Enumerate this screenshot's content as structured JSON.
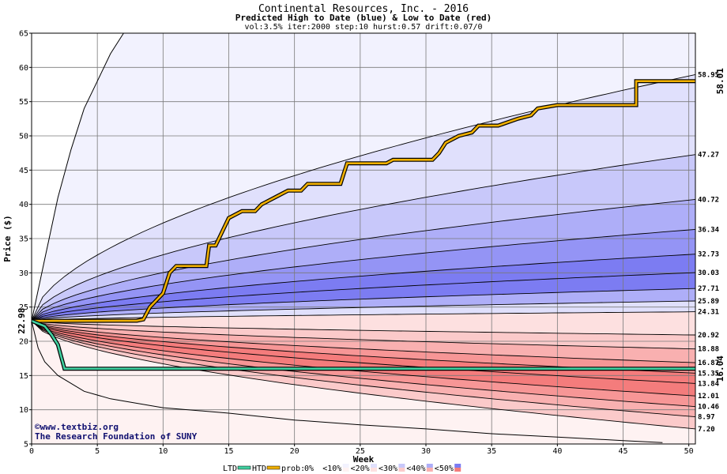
{
  "header": {
    "title": "Continental Resources, Inc. - 2016",
    "subtitle": "Predicted High to Date (blue) &  Low to Date (red)",
    "params": "vol:3.5% iter:2000 step:10 hurst:0.57 drift:0.07/0"
  },
  "watermark": {
    "line1": "©www.textbiz.org",
    "line2": "The Research Foundation of SUNY"
  },
  "legend": {
    "ltd": "LTD",
    "htd": "HTD",
    "prob": "prob:",
    "items": [
      "0%",
      "<10%",
      "<20%",
      "<30%",
      "<40%",
      "<50%"
    ]
  },
  "colors": {
    "htd_line": "#f0b000",
    "ltd_line": "#40d0a0",
    "htd_end_label": "#b08000",
    "ltd_end_label": "#008060",
    "blue_bands": [
      "#f2f2fe",
      "#e0e0fc",
      "#c8c8fa",
      "#aeaef8",
      "#9494f5",
      "#7c7cf2"
    ],
    "red_bands": [
      "#fef2f2",
      "#fde0e0",
      "#fbcaca",
      "#f9b0b0",
      "#f79696",
      "#f47c7c"
    ]
  },
  "chart_data": {
    "type": "line",
    "title": "Continental Resources, Inc. - 2016",
    "xlabel": "Week",
    "ylabel": "Price ($)",
    "xlim": [
      0,
      50.5
    ],
    "ylim": [
      5,
      65
    ],
    "x_ticks": [
      0,
      5,
      10,
      15,
      20,
      25,
      30,
      35,
      40,
      45,
      50
    ],
    "y_ticks": [
      5,
      10,
      15,
      20,
      25,
      30,
      35,
      40,
      45,
      50,
      55,
      60,
      65
    ],
    "grid": true,
    "start_price": 22.98,
    "start_label": "22.98",
    "high_percentile_end_values": [
      58.95,
      47.27,
      40.72,
      36.34,
      32.73,
      30.03,
      27.71,
      25.89,
      24.31
    ],
    "high_percentile_end_labels": [
      "58.95",
      "47.27",
      "40.72",
      "36.34",
      "32.73",
      "30.03",
      "27.71",
      "25.89",
      "24.31"
    ],
    "low_percentile_end_values": [
      20.92,
      18.88,
      16.87,
      15.35,
      13.84,
      12.01,
      10.46,
      8.97,
      7.2
    ],
    "low_percentile_end_labels": [
      "20.92",
      "18.88",
      "16.87",
      "15.35",
      "13.84",
      "12.01",
      "10.46",
      "8.97",
      "7.20"
    ],
    "outer_high_curve": [
      [
        0,
        22.98
      ],
      [
        1,
        32
      ],
      [
        2,
        41
      ],
      [
        3,
        48
      ],
      [
        4,
        54
      ],
      [
        5,
        58
      ],
      [
        6,
        62
      ],
      [
        7,
        65
      ]
    ],
    "outer_low_curve": [
      [
        0,
        22.98
      ],
      [
        0.5,
        19
      ],
      [
        1,
        17
      ],
      [
        2,
        15
      ],
      [
        4,
        12.7
      ],
      [
        6,
        11.6
      ],
      [
        10,
        10.3
      ],
      [
        15,
        9.5
      ],
      [
        20,
        8.5
      ],
      [
        25,
        7.8
      ],
      [
        30,
        7.2
      ],
      [
        35,
        6.5
      ],
      [
        40,
        6
      ],
      [
        45,
        5.5
      ],
      [
        48,
        5.2
      ]
    ],
    "series": [
      {
        "name": "HTD",
        "points": [
          [
            0,
            22.98
          ],
          [
            8,
            23
          ],
          [
            8.5,
            23.2
          ],
          [
            9,
            25
          ],
          [
            9.5,
            26
          ],
          [
            10,
            27
          ],
          [
            10.5,
            30
          ],
          [
            11,
            31
          ],
          [
            12,
            31
          ],
          [
            13.3,
            31
          ],
          [
            13.5,
            34
          ],
          [
            14,
            34
          ],
          [
            14.5,
            36
          ],
          [
            15,
            38
          ],
          [
            16,
            39
          ],
          [
            17,
            39
          ],
          [
            17.5,
            40
          ],
          [
            18.5,
            41
          ],
          [
            19.5,
            42
          ],
          [
            20.5,
            42
          ],
          [
            21,
            43
          ],
          [
            22,
            43
          ],
          [
            23.5,
            43
          ],
          [
            24,
            46
          ],
          [
            25,
            46
          ],
          [
            27,
            46
          ],
          [
            27.5,
            46.5
          ],
          [
            30.5,
            46.5
          ],
          [
            31,
            47.5
          ],
          [
            31.5,
            49
          ],
          [
            32.5,
            50
          ],
          [
            33.5,
            50.5
          ],
          [
            34,
            51.5
          ],
          [
            35.5,
            51.5
          ],
          [
            37,
            52.5
          ],
          [
            38,
            53
          ],
          [
            38.5,
            54
          ],
          [
            40,
            54.5
          ],
          [
            46,
            54.5
          ],
          [
            46,
            58
          ],
          [
            50.5,
            58
          ]
        ],
        "end_label": "58.01"
      },
      {
        "name": "LTD",
        "points": [
          [
            0,
            22.98
          ],
          [
            1,
            22.2
          ],
          [
            1.5,
            21
          ],
          [
            2,
            19.5
          ],
          [
            2.5,
            16
          ],
          [
            50.5,
            16
          ]
        ],
        "end_label": "16.04"
      }
    ]
  }
}
